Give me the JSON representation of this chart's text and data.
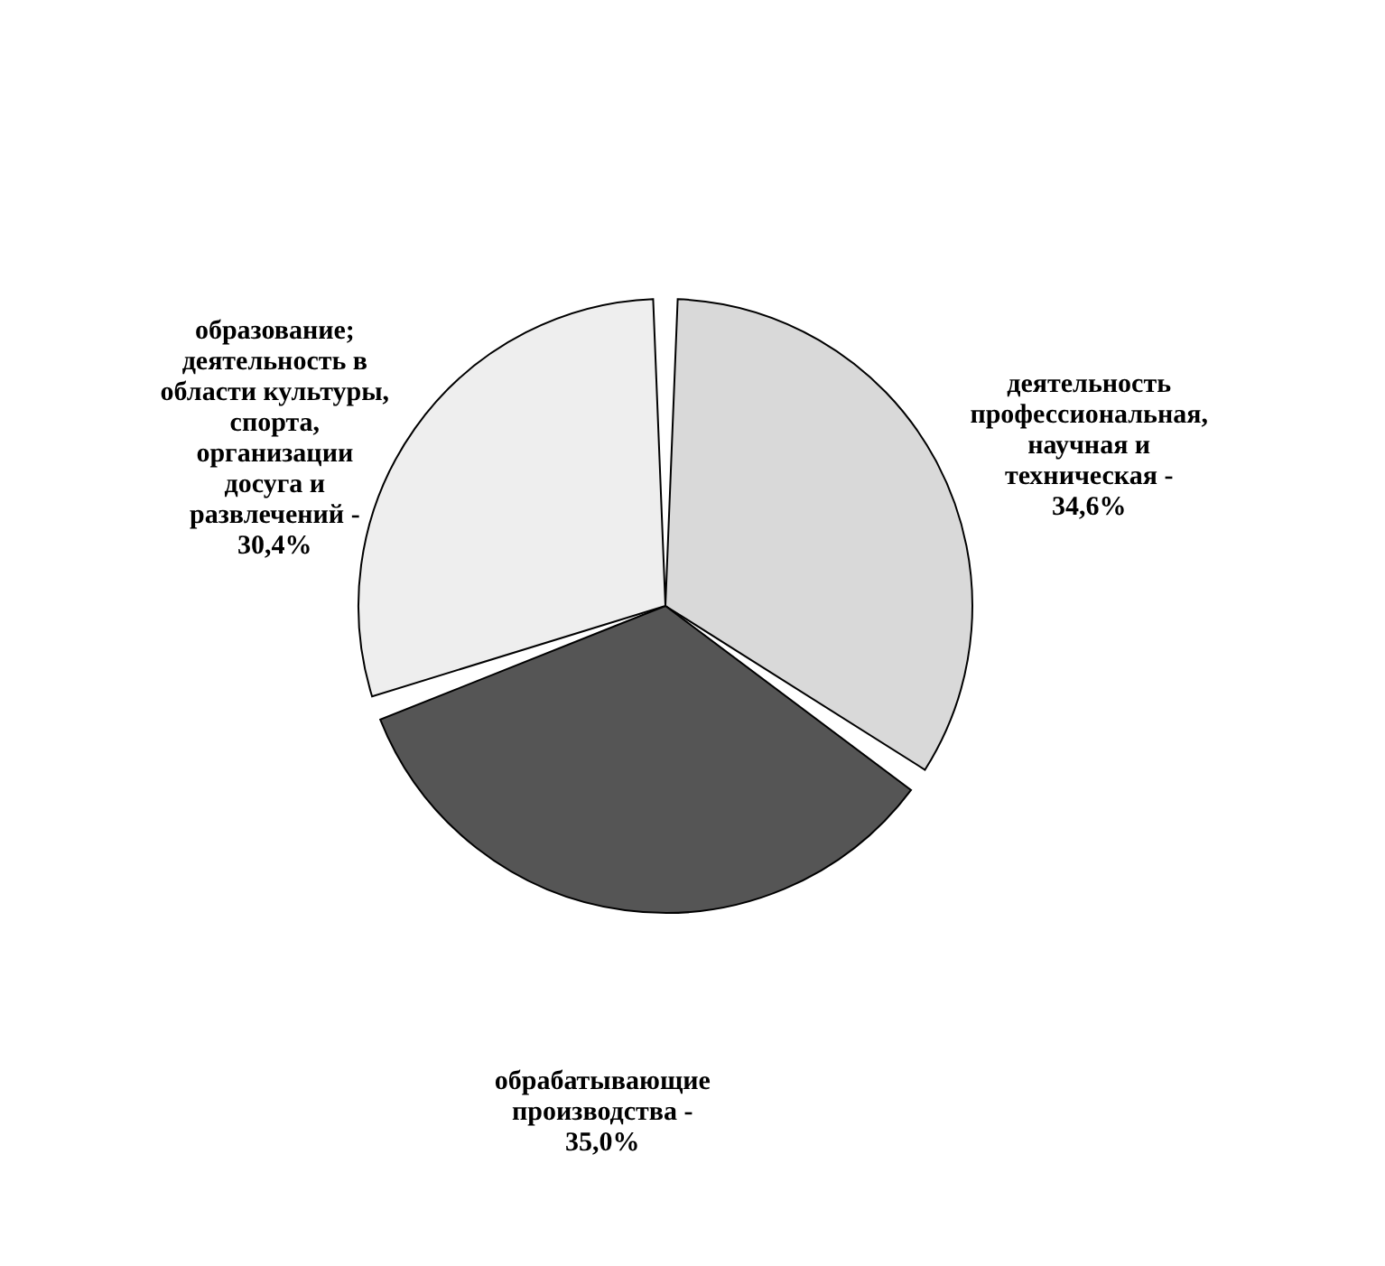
{
  "chart_data": {
    "type": "pie",
    "categories": [
      "деятельность профессиональная, научная и техническая -",
      "обрабатывающие производства -",
      "образование; деятельность в области культуры, спорта, организации досуга и развлечений -"
    ],
    "values": [
      34.6,
      35.0,
      30.4
    ],
    "value_labels": [
      "34,6%",
      "35,0%",
      "30,4%"
    ],
    "colors": [
      "#d9d9d9",
      "#555555",
      "#eeeeee"
    ],
    "legend": false
  }
}
